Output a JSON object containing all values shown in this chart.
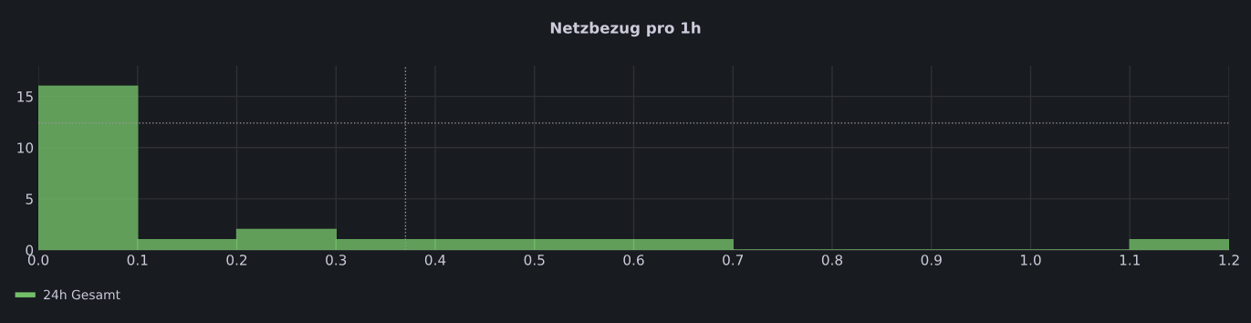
{
  "chart_data": {
    "type": "histogram",
    "title": "Netzbezug pro 1h",
    "bins": [
      0.0,
      0.1,
      0.2,
      0.3,
      0.4,
      0.5,
      0.6,
      0.7,
      0.8,
      0.9,
      1.0,
      1.1,
      1.2
    ],
    "series": [
      {
        "name": "24h Gesamt",
        "color": "#73bf69",
        "values": [
          16,
          1,
          2,
          1,
          1,
          1,
          1,
          0,
          0,
          0,
          0,
          1
        ]
      }
    ],
    "xlim": [
      0,
      1.2
    ],
    "xticks": [
      {
        "value": 0,
        "label": "0.0"
      },
      0.1,
      0.2,
      0.3,
      0.4,
      0.5,
      0.6,
      0.7,
      0.8,
      0.9,
      {
        "value": 1,
        "label": "1.0"
      },
      1.1,
      1.2
    ],
    "ylim": [
      0,
      18
    ],
    "yticks": [
      0,
      5,
      10,
      15
    ],
    "ref_lines": [
      {
        "axis": "x",
        "value": 0.37,
        "line_style": "dotted",
        "color": "#9a9a9a"
      },
      {
        "axis": "y",
        "value": 12.4,
        "line_style": "dotted",
        "color": "#9a9a9a"
      }
    ],
    "grid": true,
    "legend": "bottom left"
  }
}
